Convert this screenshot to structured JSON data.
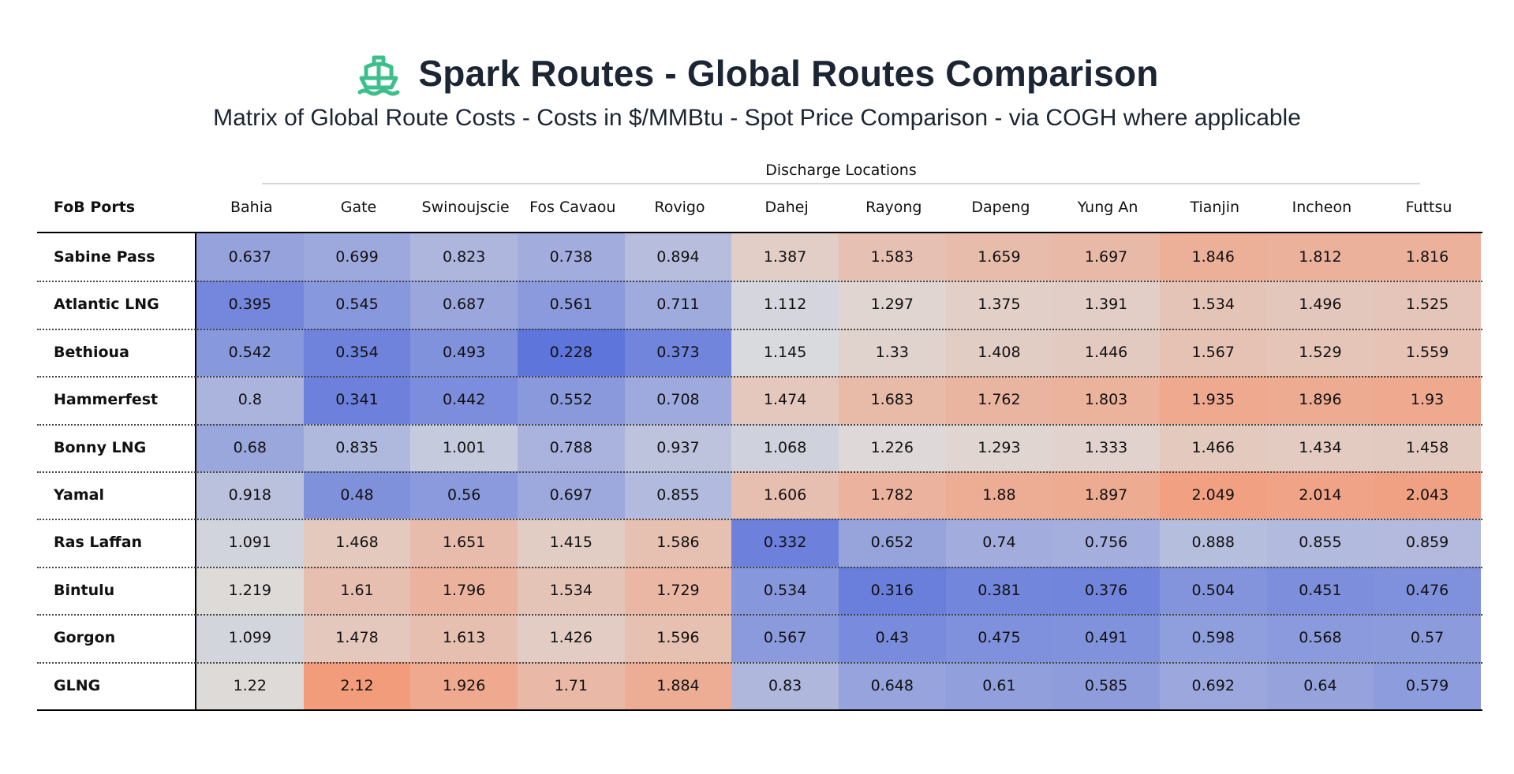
{
  "header": {
    "title": "Spark Routes - Global Routes Comparison",
    "subtitle": "Matrix of Global Route Costs - Costs in $/MMBtu - Spot Price Comparison - via COGH where applicable",
    "logo_icon": "ship-icon",
    "logo_color": "#3cbf8c"
  },
  "chart_data": {
    "type": "heatmap",
    "title": "Spark Routes - Global Routes Comparison",
    "subtitle": "Matrix of Global Route Costs - Costs in $/MMBtu - Spot Price Comparison - via COGH where applicable",
    "column_group_label": "Discharge Locations",
    "row_header_label": "FoB Ports",
    "columns": [
      "Bahia",
      "Gate",
      "Swinoujscie",
      "Fos Cavaou",
      "Rovigo",
      "Dahej",
      "Rayong",
      "Dapeng",
      "Yung An",
      "Tianjin",
      "Incheon",
      "Futtsu"
    ],
    "rows": [
      "Sabine Pass",
      "Atlantic LNG",
      "Bethioua",
      "Hammerfest",
      "Bonny LNG",
      "Yamal",
      "Ras Laffan",
      "Bintulu",
      "Gorgon",
      "GLNG"
    ],
    "values": [
      [
        "0.637",
        "0.699",
        "0.823",
        "0.738",
        "0.894",
        "1.387",
        "1.583",
        "1.659",
        "1.697",
        "1.846",
        "1.812",
        "1.816"
      ],
      [
        "0.395",
        "0.545",
        "0.687",
        "0.561",
        "0.711",
        "1.112",
        "1.297",
        "1.375",
        "1.391",
        "1.534",
        "1.496",
        "1.525"
      ],
      [
        "0.542",
        "0.354",
        "0.493",
        "0.228",
        "0.373",
        "1.145",
        "1.33",
        "1.408",
        "1.446",
        "1.567",
        "1.529",
        "1.559"
      ],
      [
        "0.8",
        "0.341",
        "0.442",
        "0.552",
        "0.708",
        "1.474",
        "1.683",
        "1.762",
        "1.803",
        "1.935",
        "1.896",
        "1.93"
      ],
      [
        "0.68",
        "0.835",
        "1.001",
        "0.788",
        "0.937",
        "1.068",
        "1.226",
        "1.293",
        "1.333",
        "1.466",
        "1.434",
        "1.458"
      ],
      [
        "0.918",
        "0.48",
        "0.56",
        "0.697",
        "0.855",
        "1.606",
        "1.782",
        "1.88",
        "1.897",
        "2.049",
        "2.014",
        "2.043"
      ],
      [
        "1.091",
        "1.468",
        "1.651",
        "1.415",
        "1.586",
        "0.332",
        "0.652",
        "0.74",
        "0.756",
        "0.888",
        "0.855",
        "0.859"
      ],
      [
        "1.219",
        "1.61",
        "1.796",
        "1.534",
        "1.729",
        "0.534",
        "0.316",
        "0.381",
        "0.376",
        "0.504",
        "0.451",
        "0.476"
      ],
      [
        "1.099",
        "1.478",
        "1.613",
        "1.426",
        "1.596",
        "0.567",
        "0.43",
        "0.475",
        "0.491",
        "0.598",
        "0.568",
        "0.57"
      ],
      [
        "1.22",
        "2.12",
        "1.926",
        "1.71",
        "1.884",
        "0.83",
        "0.648",
        "0.61",
        "0.585",
        "0.692",
        "0.64",
        "0.579"
      ]
    ],
    "colormap": "coolwarm",
    "value_range": [
      0.2,
      2.15
    ],
    "colors": {
      "low": "#5a72dc",
      "mid": "#dddddd",
      "high": "#f39a78"
    }
  }
}
